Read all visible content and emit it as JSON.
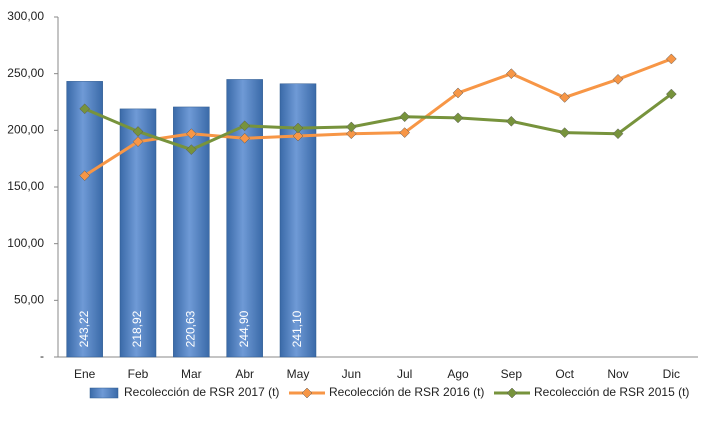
{
  "chart_data": {
    "type": "bar",
    "categories": [
      "Ene",
      "Feb",
      "Mar",
      "Abr",
      "May",
      "Jun",
      "Jul",
      "Ago",
      "Sep",
      "Oct",
      "Nov",
      "Dic"
    ],
    "series": [
      {
        "name": "Recolección de RSR 2017 (t)",
        "type": "bar",
        "color": "#4f81bd",
        "values": [
          243.22,
          218.92,
          220.63,
          244.9,
          241.1,
          null,
          null,
          null,
          null,
          null,
          null,
          null
        ],
        "value_labels": [
          "243,22",
          "218,92",
          "220,63",
          "244,90",
          "241,10",
          null,
          null,
          null,
          null,
          null,
          null,
          null
        ]
      },
      {
        "name": "Recolección de RSR 2016 (t)",
        "type": "line",
        "color": "#f79646",
        "values": [
          160,
          190,
          197,
          193,
          195,
          197,
          198,
          233,
          250,
          229,
          245,
          263
        ]
      },
      {
        "name": "Recolección de RSR 2015 (t)",
        "type": "line",
        "color": "#77933c",
        "values": [
          219,
          199,
          183,
          204,
          202,
          203,
          212,
          211,
          208,
          198,
          197,
          232
        ]
      }
    ],
    "ylim": [
      0,
      300
    ],
    "yticks": [
      {
        "value": 0,
        "label": "-"
      },
      {
        "value": 50,
        "label": "50,00"
      },
      {
        "value": 100,
        "label": "100,00"
      },
      {
        "value": 150,
        "label": "150,00"
      },
      {
        "value": 200,
        "label": "200,00"
      },
      {
        "value": 250,
        "label": "250,00"
      },
      {
        "value": 300,
        "label": "300,00"
      }
    ],
    "grid": false,
    "legend": "bottom"
  }
}
